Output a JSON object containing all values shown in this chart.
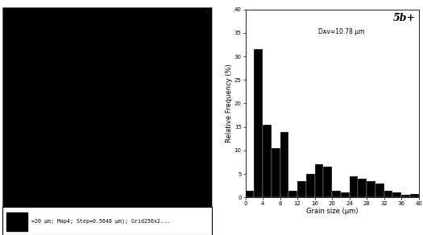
{
  "title_label": "5b+",
  "annotation": "Dᴀᴠ=10.78 μm",
  "xlabel": "Grain size (μm)",
  "ylabel": "Relative Frequency (%)",
  "ylim": [
    0,
    40
  ],
  "xlim": [
    0,
    40
  ],
  "yticks": [
    0,
    5,
    10,
    15,
    20,
    25,
    30,
    35,
    40
  ],
  "xticks": [
    0,
    4,
    8,
    12,
    16,
    20,
    24,
    28,
    32,
    36,
    40
  ],
  "bar_color": "#000000",
  "bar_edges": [
    0,
    2,
    4,
    6,
    8,
    10,
    12,
    14,
    16,
    18,
    20,
    22,
    24,
    26,
    28,
    30,
    32,
    34,
    36,
    38,
    40
  ],
  "bar_heights": [
    1.5,
    31.5,
    15.5,
    10.5,
    14.0,
    1.5,
    3.5,
    5.0,
    7.0,
    6.5,
    1.5,
    1.0,
    4.5,
    4.0,
    3.5,
    3.0,
    1.5,
    1.0,
    0.5,
    0.8
  ],
  "left_panel_bg": "#000000",
  "left_caption": "=20 μm; Map4; Step=0.5648 μm); Grid256x2...",
  "figure_bg": "#ffffff"
}
